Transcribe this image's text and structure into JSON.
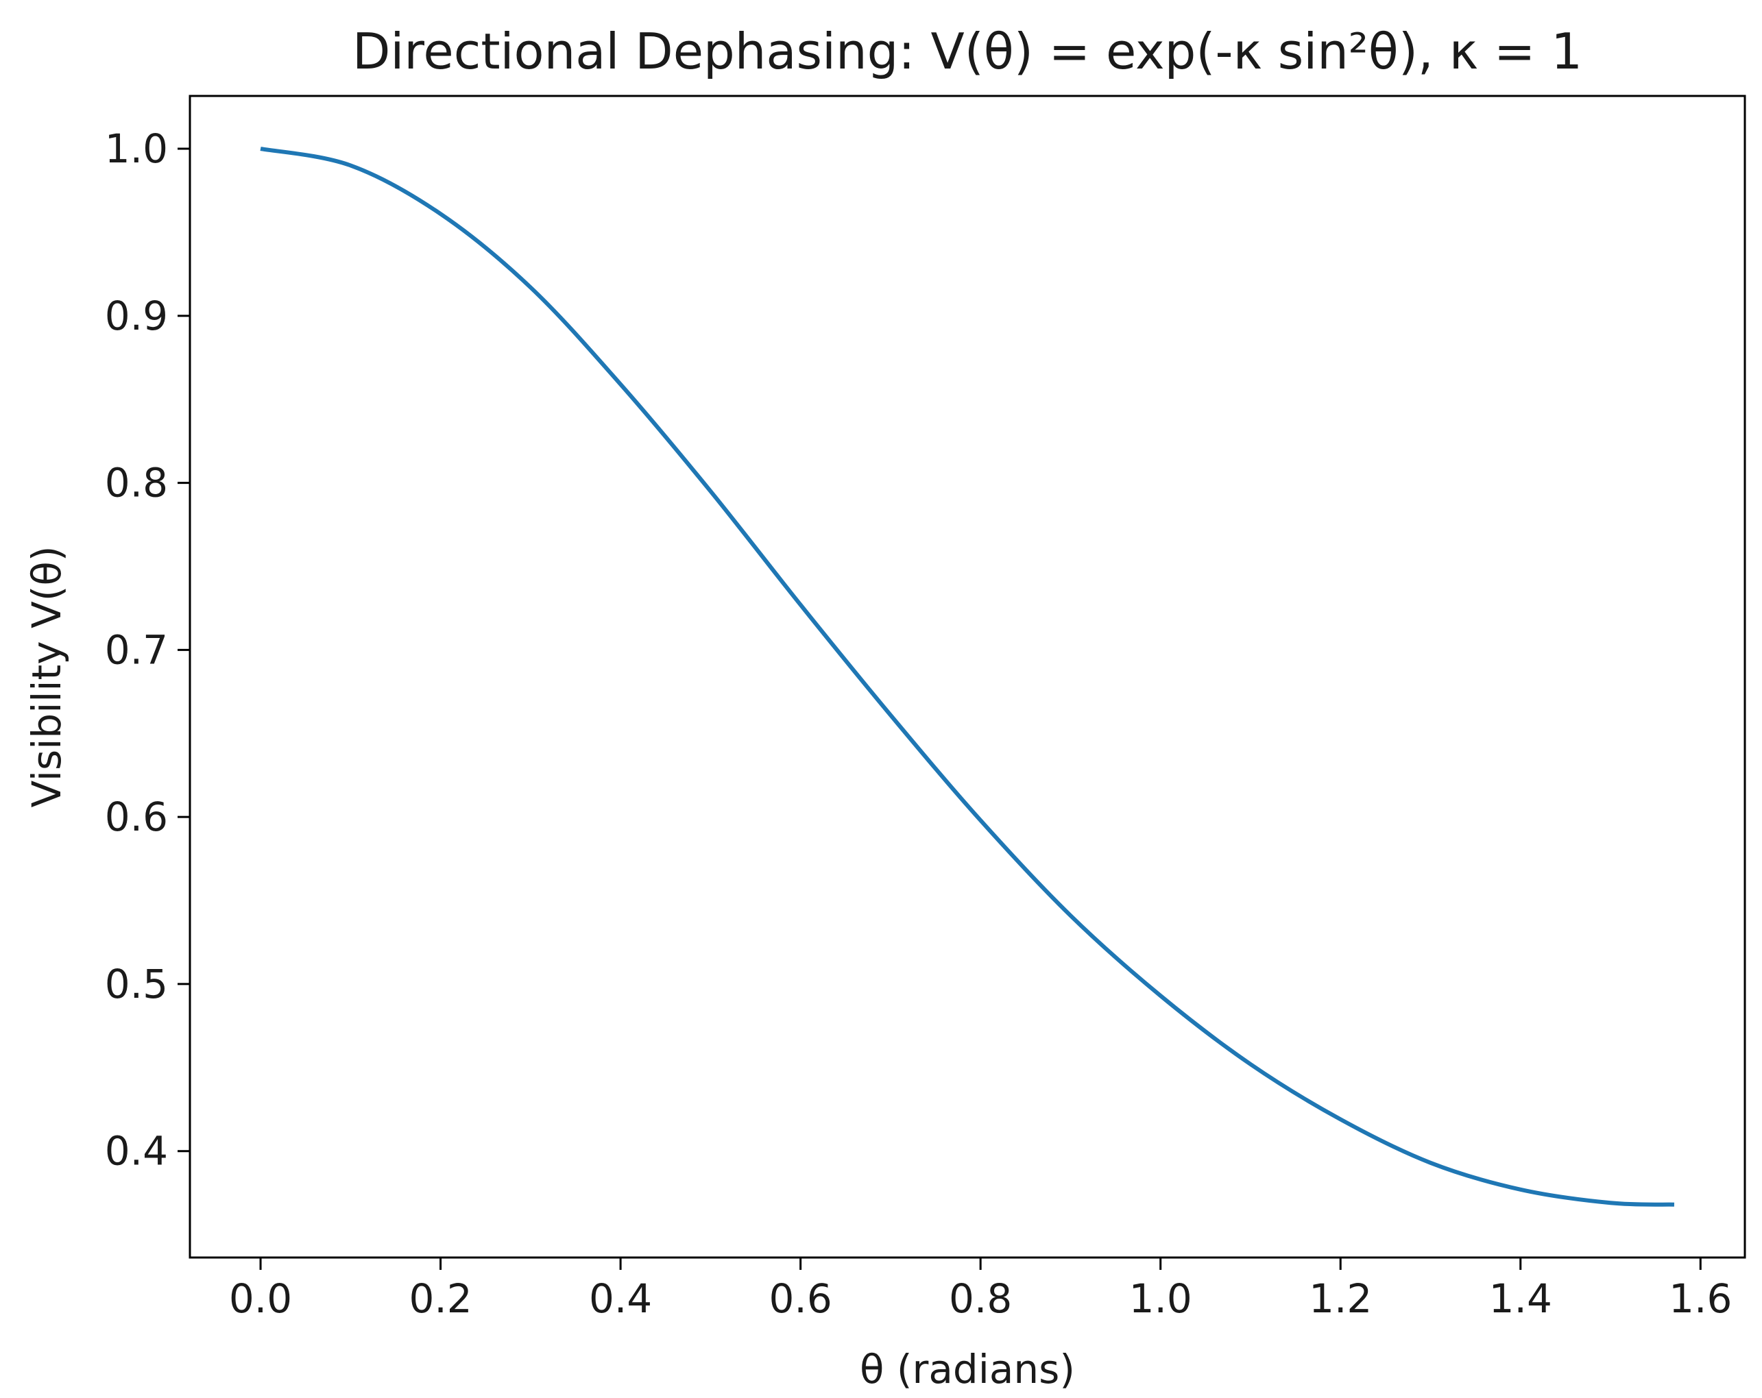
{
  "chart_data": {
    "type": "line",
    "title": "Directional Dephasing: V(θ) = exp(-κ sin²θ), κ = 1",
    "xlabel": "θ (radians)",
    "ylabel": "Visibility V(θ)",
    "xlim": [
      -0.0785,
      1.6493
    ],
    "ylim": [
      0.3363,
      1.0316
    ],
    "x_ticks": [
      0.0,
      0.2,
      0.4,
      0.6,
      0.8,
      1.0,
      1.2,
      1.4,
      1.6
    ],
    "x_tick_labels": [
      "0.0",
      "0.2",
      "0.4",
      "0.6",
      "0.8",
      "1.0",
      "1.2",
      "1.4",
      "1.6"
    ],
    "y_ticks": [
      0.4,
      0.5,
      0.6,
      0.7,
      0.8,
      0.9,
      1.0
    ],
    "y_tick_labels": [
      "0.4",
      "0.5",
      "0.6",
      "0.7",
      "0.8",
      "0.9",
      "1.0"
    ],
    "grid": false,
    "legend": "none",
    "series": [
      {
        "color": "#1f77b4",
        "x": [
          0.0,
          0.1,
          0.2,
          0.3,
          0.4,
          0.5,
          0.6,
          0.7,
          0.8,
          0.9,
          1.0,
          1.1,
          1.2,
          1.3,
          1.4,
          1.5,
          1.5708
        ],
        "y": [
          1.0,
          0.99,
          0.961,
          0.917,
          0.859,
          0.795,
          0.727,
          0.661,
          0.598,
          0.541,
          0.493,
          0.452,
          0.419,
          0.393,
          0.377,
          0.369,
          0.368
        ]
      }
    ]
  }
}
